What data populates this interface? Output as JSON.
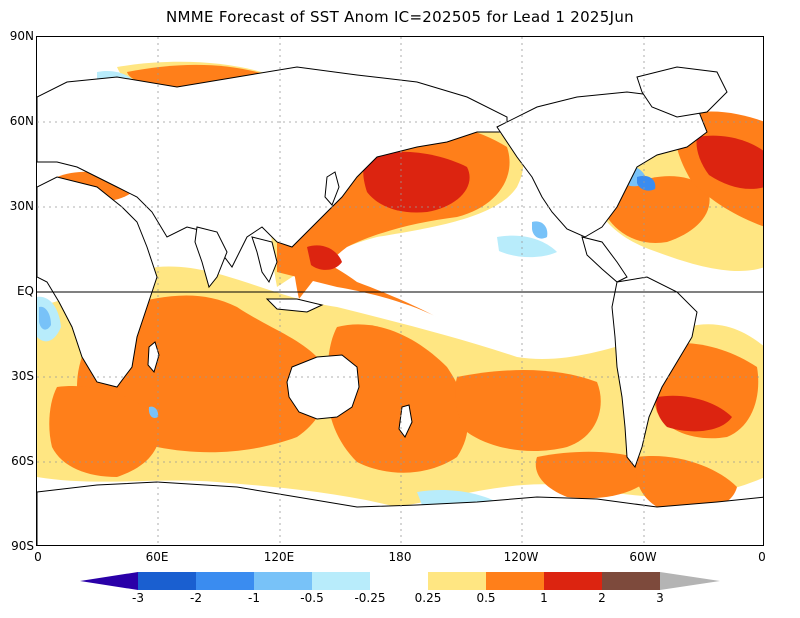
{
  "title": "NMME Forecast of SST Anom IC=202505 for Lead 1 2025Jun",
  "lat_labels": [
    "90N",
    "60N",
    "30N",
    "EQ",
    "30S",
    "60S",
    "90S"
  ],
  "lon_labels": [
    "0",
    "60E",
    "120E",
    "180",
    "120W",
    "60W",
    "0"
  ],
  "colorbar": {
    "labels": [
      "-3",
      "-2",
      "-1",
      "-0.5",
      "-0.25",
      "0.25",
      "0.5",
      "1",
      "2",
      "3"
    ],
    "colors": {
      "below_-3": "#2a00a8",
      "-3_-2": "#1a5fd0",
      "-2_-1": "#3a8cf0",
      "-1_-0.5": "#78c2f8",
      "-0.5_-0.25": "#b8ecfb",
      "-0.25_0.25": "#ffffff",
      "0.25_0.5": "#ffe682",
      "0.5_1": "#ff7f1a",
      "1_2": "#dc2410",
      "2_3": "#7d4a3c",
      "above_3": "#b4b4b4"
    }
  }
}
